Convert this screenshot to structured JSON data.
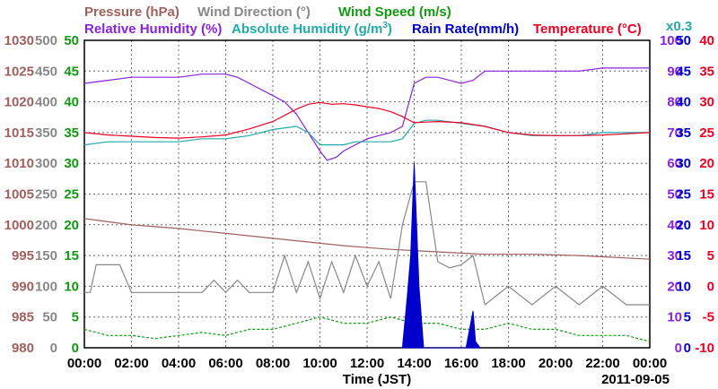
{
  "chart_data": {
    "type": "line",
    "date": "2011-09-05",
    "xlabel": "Time (JST)",
    "x_ticks": [
      "00:00",
      "02:00",
      "04:00",
      "06:00",
      "08:00",
      "10:00",
      "12:00",
      "14:00",
      "16:00",
      "18:00",
      "20:00",
      "22:00",
      "00:00"
    ],
    "legend_row1": [
      {
        "label": "Pressure (hPa)",
        "color": "#a0605e"
      },
      {
        "label": "Wind Direction (°)",
        "color": "#888888"
      },
      {
        "label": "Wind Speed (m/s)",
        "color": "#119911"
      }
    ],
    "legend_row2": [
      {
        "label": "Relative Humidity (%)",
        "color": "#8822dd"
      },
      {
        "label": "Absolute Humidity (g/m",
        "sup": "3",
        "tail": ")",
        "color": "#22aaaa"
      },
      {
        "label": "Rain Rate(mm/h)",
        "color": "#0000cc"
      },
      {
        "label": "Temperature (°C)",
        "color": "#ee0022"
      },
      {
        "label": "x0.3",
        "color": "#22aaaa"
      }
    ],
    "axes": {
      "pressure": {
        "color": "#a0605e",
        "ticks": [
          "1030",
          "1025",
          "1020",
          "1015",
          "1010",
          "1005",
          "1000",
          "995",
          "990",
          "985",
          "980"
        ],
        "ylim": [
          980,
          1030
        ]
      },
      "wind_dir": {
        "color": "#888888",
        "ticks": [
          "500",
          "450",
          "400",
          "350",
          "300",
          "250",
          "200",
          "150",
          "100",
          "50",
          "0"
        ],
        "ylim": [
          0,
          500
        ]
      },
      "wind_speed": {
        "color": "#119911",
        "ticks": [
          "50",
          "45",
          "40",
          "35",
          "30",
          "25",
          "20",
          "15",
          "10",
          "5",
          "0"
        ],
        "ylim": [
          0,
          50
        ]
      },
      "humidity": {
        "color": "#8822dd",
        "ticks": [
          "100",
          "90",
          "80",
          "70",
          "60",
          "50",
          "40",
          "30",
          "20",
          "10",
          "0"
        ],
        "ylim": [
          0,
          100
        ]
      },
      "rain": {
        "color": "#0000cc",
        "ticks": [
          "50",
          "45",
          "40",
          "35",
          "30",
          "25",
          "20",
          "15",
          "10",
          "5",
          "0"
        ],
        "ylim": [
          0,
          50
        ]
      },
      "temperature": {
        "color": "#ee0022",
        "ticks": [
          "40",
          "35",
          "30",
          "25",
          "20",
          "15",
          "10",
          "5",
          "0",
          "-5",
          "-10"
        ],
        "ylim": [
          -10,
          40
        ]
      }
    },
    "series": [
      {
        "name": "Pressure (hPa)",
        "color": "#a0605e",
        "x": [
          0,
          1,
          2,
          3,
          4,
          5,
          6,
          7,
          8,
          9,
          10,
          11,
          12,
          13,
          14,
          15,
          16,
          17,
          18,
          19,
          20,
          21,
          22,
          23,
          24
        ],
        "values": [
          1001,
          1000.5,
          1000,
          999.7,
          999.4,
          999,
          998.6,
          998.2,
          997.8,
          997.4,
          997,
          996.6,
          996.3,
          996,
          995.8,
          995.6,
          995.4,
          995.2,
          995.2,
          995.2,
          995.1,
          995,
          994.8,
          994.6,
          994.4
        ]
      },
      {
        "name": "Wind Direction (°)",
        "color": "#888888",
        "x": [
          0,
          0.25,
          0.5,
          1.5,
          2,
          3,
          4,
          5,
          5.5,
          6,
          6.5,
          7,
          8,
          8.5,
          9,
          9.5,
          10,
          10.5,
          11,
          11.5,
          12,
          12.5,
          13,
          13.5,
          14,
          14.5,
          15,
          15.5,
          16,
          16.5,
          17,
          18,
          19,
          20,
          21,
          22,
          23,
          24
        ],
        "values": [
          90,
          90,
          135,
          135,
          90,
          90,
          90,
          90,
          110,
          90,
          110,
          90,
          90,
          150,
          90,
          140,
          80,
          140,
          90,
          150,
          100,
          140,
          80,
          200,
          270,
          270,
          140,
          130,
          135,
          150,
          70,
          100,
          70,
          100,
          70,
          100,
          70,
          70
        ]
      },
      {
        "name": "Wind Speed (m/s)",
        "color": "#119911",
        "x": [
          0,
          1,
          2,
          3,
          4,
          5,
          6,
          7,
          8,
          9,
          10,
          11,
          12,
          13,
          14,
          15,
          16,
          17,
          18,
          19,
          20,
          21,
          22,
          23,
          24
        ],
        "values": [
          3,
          2,
          2,
          1.5,
          2,
          2.5,
          2,
          3,
          3,
          4,
          5,
          4,
          4,
          5,
          4,
          4,
          3,
          3,
          4,
          3,
          3,
          2,
          2,
          2,
          1
        ]
      },
      {
        "name": "Relative Humidity (%)",
        "color": "#8822dd",
        "x": [
          0,
          1,
          2,
          3,
          4,
          5,
          6,
          6.5,
          7,
          7.5,
          8,
          8.5,
          9,
          9.5,
          10,
          10.3,
          10.7,
          11,
          11.5,
          12,
          12.5,
          13,
          13.5,
          14,
          14.5,
          15,
          15.5,
          16,
          16.5,
          17,
          18,
          19,
          20,
          21,
          22,
          23,
          24
        ],
        "values": [
          86,
          87,
          88,
          88,
          88,
          89,
          89,
          88,
          86,
          84,
          82,
          80,
          76,
          70,
          64,
          61,
          62,
          64,
          66,
          68,
          69,
          70,
          72,
          86,
          88,
          88,
          87,
          86,
          87,
          90,
          90,
          90,
          90,
          90,
          91,
          91,
          91
        ]
      },
      {
        "name": "Absolute Humidity (g/m3)",
        "color": "#22aaaa",
        "x": [
          0,
          1,
          2,
          3,
          4,
          5,
          6,
          7,
          8,
          9,
          9.5,
          10,
          10.5,
          11,
          11.5,
          12,
          12.5,
          13,
          13.5,
          14,
          14.5,
          15,
          16,
          17,
          18,
          19,
          20,
          21,
          22,
          23,
          24
        ],
        "values": [
          66,
          67,
          67,
          67,
          67,
          68,
          68,
          69,
          71,
          72,
          70,
          66,
          66,
          66,
          67,
          67,
          67,
          67,
          68,
          73,
          74,
          74,
          73,
          72,
          70,
          69,
          69,
          69,
          70,
          70,
          70
        ]
      },
      {
        "name": "Temperature (°C)",
        "color": "#ee0022",
        "x": [
          0,
          1,
          2,
          3,
          4,
          5,
          6,
          7,
          8,
          9,
          9.5,
          10,
          10.5,
          11,
          11.5,
          12,
          12.5,
          13,
          13.5,
          14,
          14.5,
          15,
          16,
          17,
          18,
          19,
          20,
          21,
          22,
          23,
          24
        ],
        "values": [
          25,
          24.6,
          24.4,
          24.2,
          24.1,
          24.3,
          24.6,
          25.6,
          26.8,
          28.8,
          29.6,
          29.9,
          29.6,
          29.7,
          29.5,
          29.2,
          28.9,
          28.4,
          27.6,
          26.6,
          26.7,
          26.8,
          26.6,
          26,
          25,
          24.6,
          24.5,
          24.5,
          24.6,
          24.8,
          25
        ]
      },
      {
        "name": "Rain Rate(mm/h)",
        "color": "#0000cc",
        "x": [
          13.5,
          13.7,
          13.85,
          14,
          14.2,
          14.4,
          16.2,
          16.35,
          16.5,
          16.6,
          16.8
        ],
        "values": [
          0,
          8,
          15,
          30,
          10,
          0,
          0,
          3,
          6,
          1,
          0
        ]
      }
    ]
  }
}
